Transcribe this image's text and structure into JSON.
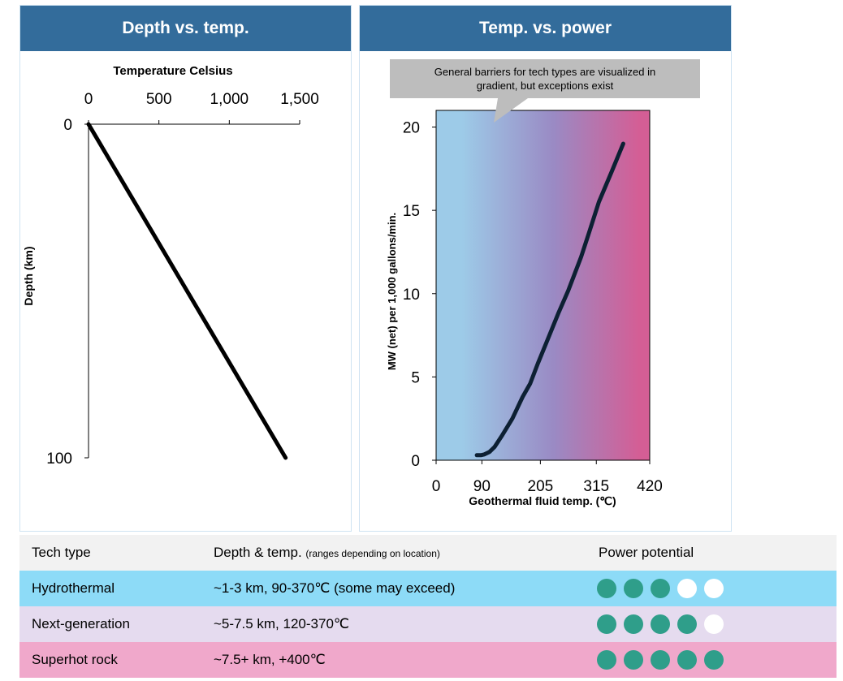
{
  "panels": {
    "left_title": "Depth vs. temp.",
    "right_title": "Temp. vs. power"
  },
  "chart_data": [
    {
      "type": "line",
      "title": "Depth vs. temp.",
      "xlabel": "Temperature Celsius",
      "ylabel": "Depth (km)",
      "x_ticks": [
        "0",
        "500",
        "1,000",
        "1,500"
      ],
      "y_ticks": [
        "0",
        "100"
      ],
      "xlim": [
        0,
        1500
      ],
      "ylim": [
        0,
        100
      ],
      "y_inverted": true,
      "x_axis_position": "top",
      "grid": false,
      "series": [
        {
          "x": [
            0,
            1400
          ],
          "y": [
            0,
            100
          ],
          "color": "#000000"
        }
      ]
    },
    {
      "type": "line",
      "title": "Temp. vs. power",
      "xlabel": "Geothermal fluid temp. (℃)",
      "ylabel": "MW (net) per 1,000 gallons/min.",
      "x_ticks": [
        "0",
        "90",
        "205",
        "315",
        "420"
      ],
      "y_ticks": [
        "0",
        "5",
        "10",
        "15",
        "20"
      ],
      "xlim": [
        0,
        420
      ],
      "ylim": [
        0,
        21
      ],
      "grid": false,
      "annotation": "General barriers for tech types are visualized in gradient, but exceptions exist",
      "background_gradient": [
        "#9dcbe8",
        "#9a8ac4",
        "#d45e95"
      ],
      "series": [
        {
          "x": [
            80,
            88,
            95,
            105,
            115,
            130,
            150,
            170,
            185,
            200,
            220,
            240,
            260,
            285,
            300,
            320,
            345,
            368
          ],
          "y": [
            0.3,
            0.3,
            0.35,
            0.5,
            0.8,
            1.5,
            2.5,
            3.8,
            4.6,
            5.8,
            7.3,
            8.8,
            10.2,
            12.2,
            13.6,
            15.5,
            17.3,
            19.0
          ],
          "color": "#0d2033"
        }
      ]
    }
  ],
  "table": {
    "header": {
      "tech": "Tech type",
      "depth": "Depth & temp.",
      "depth_note": "(ranges depending on location)",
      "power": "Power potential"
    },
    "rows": [
      {
        "tech": "Hydrothermal",
        "depth": "~1-3 km, 90-370℃ (some may exceed)",
        "power": 3,
        "bg": "#8ddbf7"
      },
      {
        "tech": "Next-generation",
        "depth": "~5-7.5 km, 120-370℃",
        "power": 4,
        "bg": "#e5dbef"
      },
      {
        "tech": "Superhot rock",
        "depth": "~7.5+ km, +400℃",
        "power": 5,
        "bg": "#f0a8cb"
      }
    ],
    "power_max": 5,
    "header_bg": "#f2f2f2",
    "dot_on_color": "#2f9e8a"
  }
}
